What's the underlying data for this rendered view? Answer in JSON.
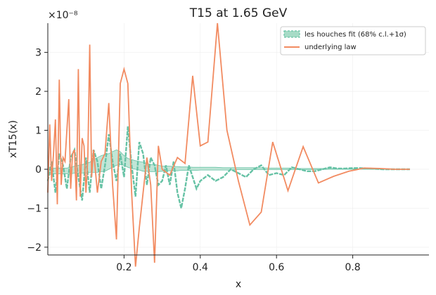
{
  "chart_data": {
    "type": "line",
    "title": "T15 at 1.65 GeV",
    "xlabel": "x",
    "ylabel": "xT15(x)",
    "y_scale_label": "×10⁻⁸",
    "xlim": [
      0.0,
      1.0
    ],
    "ylim": [
      -2.2,
      3.75
    ],
    "x_ticks": [
      0.2,
      0.4,
      0.6,
      0.8
    ],
    "x_tick_labels": [
      "0.2",
      "0.4",
      "0.6",
      "0.8"
    ],
    "y_ticks": [
      -2,
      -1,
      0,
      1,
      2,
      3
    ],
    "y_tick_labels": [
      "−2",
      "−1",
      "0",
      "1",
      "2",
      "3"
    ],
    "grid": true,
    "legend_position": "top-right",
    "colors": {
      "fit": "#66c2a5",
      "band": "#a6dbc6",
      "law": "#f28b61"
    },
    "series": [
      {
        "name": "les houches fit (68% c.l.+1σ)",
        "kind": "band-with-line",
        "x": [
          0.0,
          0.01,
          0.02,
          0.03,
          0.04,
          0.05,
          0.06,
          0.07,
          0.08,
          0.09,
          0.1,
          0.11,
          0.12,
          0.13,
          0.14,
          0.15,
          0.16,
          0.17,
          0.18,
          0.19,
          0.2,
          0.21,
          0.22,
          0.23,
          0.24,
          0.25,
          0.26,
          0.27,
          0.28,
          0.29,
          0.3,
          0.31,
          0.32,
          0.33,
          0.34,
          0.35,
          0.36,
          0.37,
          0.38,
          0.39,
          0.4,
          0.42,
          0.44,
          0.46,
          0.48,
          0.5,
          0.52,
          0.54,
          0.56,
          0.58,
          0.6,
          0.62,
          0.64,
          0.66,
          0.68,
          0.7,
          0.72,
          0.74,
          0.76,
          0.78,
          0.8,
          0.82,
          0.84,
          0.86,
          0.88,
          0.9,
          0.92,
          0.95
        ],
        "values": [
          -0.3,
          0.2,
          -0.6,
          0.4,
          0.1,
          -0.5,
          0.3,
          0.5,
          -0.2,
          -0.8,
          0.3,
          -0.6,
          0.5,
          0.2,
          -0.5,
          0.1,
          0.9,
          0.2,
          -0.3,
          0.4,
          -0.2,
          1.1,
          0.1,
          -0.7,
          0.7,
          0.4,
          -0.4,
          0.3,
          0.1,
          -0.4,
          -0.3,
          0.1,
          -0.4,
          0.2,
          -0.6,
          -1.0,
          -0.5,
          0.1,
          -0.2,
          -0.5,
          -0.3,
          -0.15,
          -0.3,
          -0.2,
          0.0,
          -0.1,
          -0.2,
          0.0,
          0.1,
          -0.15,
          -0.1,
          -0.15,
          0.05,
          0.0,
          -0.05,
          -0.05,
          0.0,
          0.05,
          0.02,
          0.02,
          0.03,
          0.03,
          0.02,
          0.01,
          0.0,
          0.0,
          0.0,
          0.0
        ],
        "band_lower": [
          -0.15,
          -0.12,
          -0.12,
          -0.12,
          -0.12,
          -0.12,
          -0.12,
          -0.1,
          -0.1,
          -0.1,
          -0.1,
          -0.08,
          -0.08,
          -0.08,
          -0.06,
          -0.05,
          0.0,
          0.05,
          0.1,
          0.12,
          0.1,
          0.05,
          0.02,
          0.0,
          -0.02,
          -0.05,
          -0.05,
          -0.06,
          -0.06,
          -0.06,
          -0.05,
          -0.04,
          -0.04,
          -0.04,
          -0.04,
          -0.03,
          -0.03,
          -0.03,
          -0.03,
          -0.03,
          -0.02,
          -0.02,
          -0.02,
          -0.02,
          -0.02,
          -0.01,
          -0.01,
          -0.01,
          -0.01,
          -0.01,
          -0.01,
          -0.01,
          -0.01,
          -0.01,
          -0.005,
          -0.005,
          -0.005,
          0.0,
          0.0,
          0.0,
          0.0,
          0.0,
          0.0,
          0.0,
          0.0,
          0.0,
          0.0,
          0.0
        ],
        "band_upper": [
          0.05,
          0.03,
          0.03,
          0.03,
          0.03,
          0.03,
          0.05,
          0.08,
          0.1,
          0.12,
          0.15,
          0.18,
          0.25,
          0.3,
          0.35,
          0.38,
          0.4,
          0.45,
          0.5,
          0.45,
          0.35,
          0.28,
          0.25,
          0.22,
          0.2,
          0.18,
          0.15,
          0.12,
          0.12,
          0.1,
          0.08,
          0.08,
          0.08,
          0.07,
          0.07,
          0.06,
          0.06,
          0.06,
          0.05,
          0.05,
          0.05,
          0.05,
          0.05,
          0.04,
          0.04,
          0.04,
          0.04,
          0.04,
          0.04,
          0.03,
          0.03,
          0.03,
          0.03,
          0.02,
          0.02,
          0.02,
          0.02,
          0.02,
          0.01,
          0.01,
          0.01,
          0.01,
          0.01,
          0.01,
          0.0,
          0.0,
          0.0,
          0.0
        ]
      },
      {
        "name": "underlying law",
        "kind": "line",
        "x": [
          0.0,
          0.005,
          0.01,
          0.015,
          0.02,
          0.025,
          0.03,
          0.035,
          0.04,
          0.045,
          0.05,
          0.055,
          0.06,
          0.065,
          0.07,
          0.075,
          0.08,
          0.085,
          0.09,
          0.095,
          0.1,
          0.105,
          0.11,
          0.115,
          0.12,
          0.13,
          0.14,
          0.15,
          0.16,
          0.17,
          0.18,
          0.19,
          0.2,
          0.21,
          0.22,
          0.23,
          0.24,
          0.25,
          0.26,
          0.27,
          0.28,
          0.29,
          0.3,
          0.32,
          0.34,
          0.36,
          0.38,
          0.4,
          0.42,
          0.445,
          0.47,
          0.5,
          0.53,
          0.56,
          0.59,
          0.63,
          0.67,
          0.71,
          0.75,
          0.79,
          0.83,
          0.87,
          0.91,
          0.95
        ],
        "values": [
          -0.6,
          1.15,
          -0.3,
          0.4,
          1.28,
          -0.9,
          2.3,
          -0.4,
          0.3,
          0.2,
          1.0,
          1.8,
          -0.5,
          0.4,
          0.5,
          -0.8,
          2.57,
          -0.7,
          0.8,
          0.6,
          -0.6,
          0.3,
          3.2,
          -0.2,
          0.5,
          -0.6,
          0.2,
          0.4,
          1.7,
          -0.4,
          -1.8,
          2.2,
          2.57,
          2.2,
          -0.6,
          -2.5,
          -1.5,
          -0.6,
          0.3,
          -0.4,
          -2.4,
          0.6,
          0.0,
          -0.15,
          0.3,
          0.15,
          2.4,
          0.6,
          0.7,
          3.75,
          1.0,
          -0.3,
          -1.43,
          -1.1,
          0.7,
          -0.55,
          0.58,
          -0.35,
          -0.18,
          -0.05,
          0.03,
          0.02,
          0.0,
          0.0
        ]
      }
    ]
  }
}
